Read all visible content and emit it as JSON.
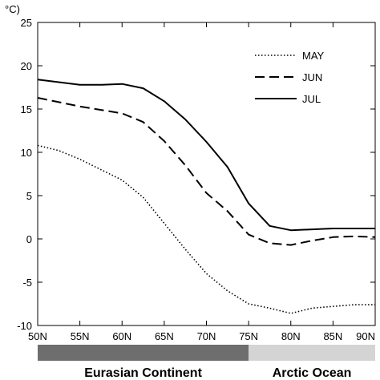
{
  "chart_data": {
    "type": "line",
    "ylabel": "°C)",
    "ylim": [
      -10,
      25
    ],
    "yticks": [
      -10,
      -5,
      0,
      5,
      10,
      15,
      20,
      25
    ],
    "xlim": [
      50,
      90
    ],
    "xticks": [
      {
        "value": 50,
        "label": "50N"
      },
      {
        "value": 55,
        "label": "55N"
      },
      {
        "value": 60,
        "label": "60N"
      },
      {
        "value": 65,
        "label": "65N"
      },
      {
        "value": 70,
        "label": "70N"
      },
      {
        "value": 75,
        "label": "75N"
      },
      {
        "value": 80,
        "label": "80N"
      },
      {
        "value": 85,
        "label": "85N"
      },
      {
        "value": 90,
        "label": "90N"
      }
    ],
    "grid": false,
    "legend_position": "top-right",
    "series": [
      {
        "name": "MAY",
        "line_style": "dotted",
        "color": "#000000",
        "x": [
          50,
          52.5,
          55,
          57.5,
          60,
          62.5,
          65,
          67.5,
          70,
          72.5,
          75,
          77.5,
          80,
          82.5,
          85,
          87.5,
          90
        ],
        "values": [
          10.8,
          10.2,
          9.2,
          8.0,
          6.8,
          4.8,
          1.8,
          -1.2,
          -4.0,
          -6.0,
          -7.5,
          -8.0,
          -8.6,
          -8.0,
          -7.8,
          -7.6,
          -7.6
        ]
      },
      {
        "name": "JUN",
        "line_style": "dashed",
        "color": "#000000",
        "x": [
          50,
          52.5,
          55,
          57.5,
          60,
          62.5,
          65,
          67.5,
          70,
          72.5,
          75,
          77.5,
          80,
          82.5,
          85,
          87.5,
          90
        ],
        "values": [
          16.3,
          15.8,
          15.3,
          14.9,
          14.5,
          13.5,
          11.3,
          8.5,
          5.3,
          3.2,
          0.5,
          -0.5,
          -0.7,
          -0.2,
          0.2,
          0.3,
          0.2
        ]
      },
      {
        "name": "JUL",
        "line_style": "solid",
        "color": "#000000",
        "x": [
          50,
          52.5,
          55,
          57.5,
          60,
          62.5,
          65,
          67.5,
          70,
          72.5,
          75,
          77.5,
          80,
          82.5,
          85,
          87.5,
          90
        ],
        "values": [
          18.4,
          18.1,
          17.8,
          17.8,
          17.9,
          17.4,
          15.9,
          13.8,
          11.2,
          8.3,
          4.1,
          1.5,
          1.0,
          1.1,
          1.2,
          1.2,
          1.2
        ]
      }
    ],
    "region_bar": [
      {
        "label": "Eurasian Continent",
        "from": 50,
        "to": 75,
        "color": "#6e6e6e"
      },
      {
        "label": "Arctic Ocean",
        "from": 75,
        "to": 90,
        "color": "#d4d4d4"
      }
    ]
  }
}
